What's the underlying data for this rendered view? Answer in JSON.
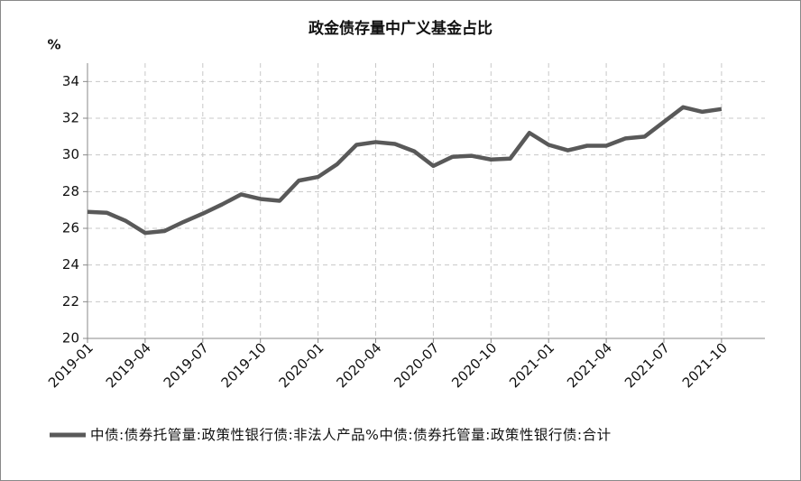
{
  "chart_data": {
    "type": "line",
    "title": "政金债存量中广义基金占比",
    "y_label": "%",
    "categories": [
      "2019-01",
      null,
      null,
      "2019-04",
      null,
      null,
      "2019-07",
      null,
      null,
      "2019-10",
      null,
      null,
      "2020-01",
      null,
      null,
      "2020-04",
      null,
      null,
      "2020-07",
      null,
      null,
      "2020-10",
      null,
      null,
      "2021-01",
      null,
      null,
      "2021-04",
      null,
      null,
      "2021-07",
      null,
      null,
      "2021-10"
    ],
    "series": [
      {
        "name": "中债:债券托管量:政策性银行债:非法人产品%中债:债券托管量:政策性银行债:合计",
        "color": "#595959",
        "values": [
          26.9,
          26.85,
          26.4,
          25.75,
          25.85,
          26.35,
          26.8,
          27.3,
          27.85,
          27.6,
          27.5,
          28.6,
          28.8,
          29.5,
          30.55,
          30.7,
          30.6,
          30.2,
          29.4,
          29.9,
          29.95,
          29.75,
          29.8,
          31.2,
          30.55,
          30.25,
          30.5,
          30.5,
          30.9,
          31.0,
          31.8,
          32.6,
          32.35,
          32.5
        ]
      }
    ],
    "ylim": [
      20,
      35
    ],
    "yticks": [
      20,
      22,
      24,
      26,
      28,
      30,
      32,
      34
    ],
    "grid": true
  }
}
